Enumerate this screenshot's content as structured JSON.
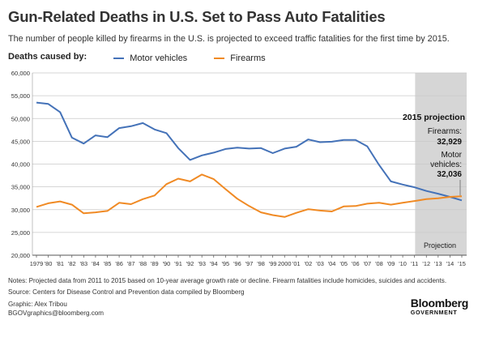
{
  "header": {
    "title": "Gun-Related Deaths in U.S. Set to Pass Auto Fatalities",
    "subtitle": "The number of people killed by firearms in the U.S. is projected to exceed traffic fatalities for the first time by 2015."
  },
  "legend": {
    "label": "Deaths caused by:",
    "items": [
      {
        "name": "Motor vehicles",
        "color": "#4472b8"
      },
      {
        "name": "Firearms",
        "color": "#f08a24"
      }
    ]
  },
  "projection": {
    "heading": "2015 projection",
    "firearms_label": "Firearms:",
    "firearms_value": "32,929",
    "motor_label_line1": "Motor",
    "motor_label_line2": "vehicles:",
    "motor_value": "32,036",
    "shade_label": "Projection"
  },
  "notes": {
    "line1": "Notes: Projected data from 2011 to 2015 based on 10-year average growth rate or decline. Firearm fatalities include homicides, suicides and accidents.",
    "line2": "Source: Centers for Disease Control and Prevention data compiled by Bloomberg"
  },
  "credits": {
    "graphic": "Graphic: Alex Tribou",
    "email": "BGOVgraphics@bloomberg.com"
  },
  "logo": {
    "name": "Bloomberg",
    "sub": "GOVERNMENT"
  },
  "chart_data": {
    "type": "line",
    "x": [
      1979,
      1980,
      1981,
      1982,
      1983,
      1984,
      1985,
      1986,
      1987,
      1988,
      1989,
      1990,
      1991,
      1992,
      1993,
      1994,
      1995,
      1996,
      1997,
      1998,
      1999,
      2000,
      2001,
      2002,
      2003,
      2004,
      2005,
      2006,
      2007,
      2008,
      2009,
      2010,
      2011,
      2012,
      2013,
      2014,
      2015
    ],
    "x_tick_labels": [
      "1979",
      "'80",
      "'81",
      "'82",
      "'83",
      "'84",
      "'85",
      "'86",
      "'87",
      "'88",
      "'89",
      "'90",
      "'91",
      "'92",
      "'93",
      "'94",
      "'95",
      "'96",
      "'97",
      "'98",
      "'99",
      "2000",
      "'01",
      "'02",
      "'03",
      "'04",
      "'05",
      "'06",
      "'07",
      "'08",
      "'09",
      "'10",
      "'11",
      "'12",
      "'13",
      "'14",
      "'15"
    ],
    "ylim": [
      20000,
      60000
    ],
    "y_ticks": [
      "20,000",
      "25,000",
      "30,000",
      "35,000",
      "40,000",
      "45,000",
      "50,000",
      "55,000",
      "60,000"
    ],
    "y_tick_values": [
      20000,
      25000,
      30000,
      35000,
      40000,
      45000,
      50000,
      55000,
      60000
    ],
    "projection_start": 2011,
    "grid": "horizontal",
    "series": [
      {
        "name": "Motor vehicles",
        "color": "#4472b8",
        "values": [
          53500,
          53200,
          51400,
          45800,
          44500,
          46300,
          45900,
          47900,
          48300,
          49000,
          47600,
          46800,
          43500,
          40900,
          41900,
          42500,
          43300,
          43600,
          43400,
          43500,
          42400,
          43400,
          43800,
          45400,
          44800,
          44900,
          45300,
          45300,
          43900,
          39800,
          36200,
          35500,
          34900,
          34100,
          33500,
          32800,
          32036
        ]
      },
      {
        "name": "Firearms",
        "color": "#f08a24",
        "values": [
          30600,
          31400,
          31800,
          31100,
          29200,
          29400,
          29700,
          31500,
          31200,
          32300,
          33100,
          35600,
          36800,
          36200,
          37700,
          36700,
          34500,
          32400,
          30800,
          29400,
          28800,
          28400,
          29300,
          30100,
          29800,
          29600,
          30700,
          30800,
          31300,
          31500,
          31100,
          31500,
          31900,
          32300,
          32500,
          32800,
          32929
        ]
      }
    ]
  }
}
